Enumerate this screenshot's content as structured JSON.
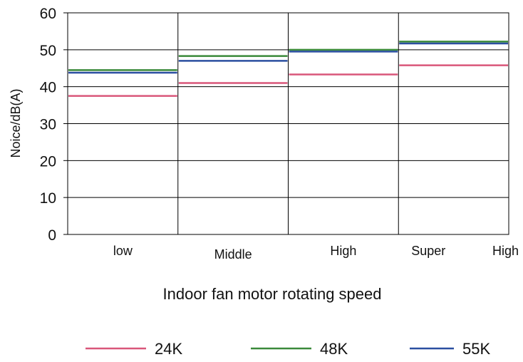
{
  "chart_data": {
    "type": "step-line",
    "xlabel": "Indoor fan motor rotating speed",
    "ylabel": "Noice/dB(A)",
    "ylim": [
      0,
      60
    ],
    "yticks": [
      0,
      10,
      20,
      30,
      40,
      50,
      60
    ],
    "categories": [
      "low",
      "Middle",
      "High",
      "Super High"
    ],
    "category_label_parts": [
      [
        "low"
      ],
      [
        "Middle"
      ],
      [
        "High"
      ],
      [
        "Super",
        "High"
      ]
    ],
    "grid": true,
    "legend_position": "bottom",
    "series": [
      {
        "name": "24K",
        "color": "#d9577a",
        "values": [
          37.5,
          41,
          43.3,
          45.8
        ]
      },
      {
        "name": "48K",
        "color": "#3a8a3a",
        "values": [
          44.5,
          48.3,
          50,
          52.2
        ]
      },
      {
        "name": "55K",
        "color": "#2b4fa0",
        "values": [
          43.8,
          47,
          49.5,
          51.7
        ]
      }
    ]
  }
}
